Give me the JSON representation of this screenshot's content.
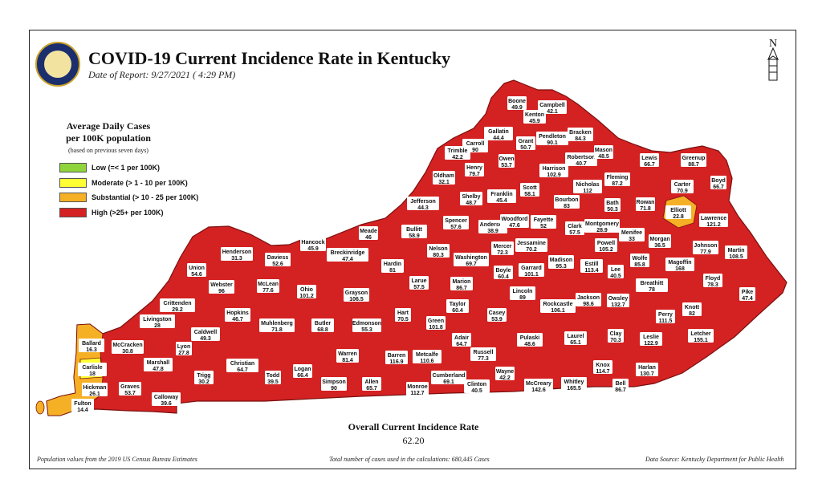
{
  "header": {
    "title": "COVID-19 Current Incidence Rate in Kentucky",
    "date": "Date of Report: 9/27/2021 ( 4:29 PM)",
    "north_label": "N"
  },
  "legend": {
    "title_line1": "Average Daily Cases",
    "title_line2": "per 100K population",
    "subtitle": "(based on previous seven days)",
    "items": [
      {
        "label": "Low (=< 1 per 100K)",
        "color": "#8fd43a"
      },
      {
        "label": "Moderate (> 1 - 10 per 100K)",
        "color": "#ffff33"
      },
      {
        "label": "Substantial (> 10 - 25 per 100K)",
        "color": "#f6b026"
      },
      {
        "label": "High (>25+ per 100K)",
        "color": "#d42121"
      }
    ]
  },
  "colors": {
    "high": "#d42121",
    "substantial": "#f6b026",
    "border": "#7a1010"
  },
  "counties": [
    {
      "name": "Boone",
      "rate": "49.9"
    },
    {
      "name": "Campbell",
      "rate": "42.1"
    },
    {
      "name": "Kenton",
      "rate": "45.9"
    },
    {
      "name": "Gallatin",
      "rate": "44.4"
    },
    {
      "name": "Carroll",
      "rate": "90"
    },
    {
      "name": "Grant",
      "rate": "50.7"
    },
    {
      "name": "Pendleton",
      "rate": "90.1"
    },
    {
      "name": "Bracken",
      "rate": "84.3"
    },
    {
      "name": "Trimble",
      "rate": "42.2"
    },
    {
      "name": "Henry",
      "rate": "79.7"
    },
    {
      "name": "Owen",
      "rate": "53.7"
    },
    {
      "name": "Robertson",
      "rate": "40.7"
    },
    {
      "name": "Mason",
      "rate": "48.5"
    },
    {
      "name": "Lewis",
      "rate": "66.7"
    },
    {
      "name": "Greenup",
      "rate": "88.7"
    },
    {
      "name": "Oldham",
      "rate": "32.1"
    },
    {
      "name": "Harrison",
      "rate": "102.9"
    },
    {
      "name": "Fleming",
      "rate": "87.2"
    },
    {
      "name": "Carter",
      "rate": "70.9"
    },
    {
      "name": "Boyd",
      "rate": "66.7"
    },
    {
      "name": "Shelby",
      "rate": "48.7"
    },
    {
      "name": "Franklin",
      "rate": "45.4"
    },
    {
      "name": "Scott",
      "rate": "58.1"
    },
    {
      "name": "Nicholas",
      "rate": "112"
    },
    {
      "name": "Rowan",
      "rate": "71.8"
    },
    {
      "name": "Jefferson",
      "rate": "44.3"
    },
    {
      "name": "Bourbon",
      "rate": "83"
    },
    {
      "name": "Bath",
      "rate": "50.3"
    },
    {
      "name": "Elliott",
      "rate": "22.8"
    },
    {
      "name": "Lawrence",
      "rate": "121.2"
    },
    {
      "name": "Spencer",
      "rate": "57.6"
    },
    {
      "name": "Anderson",
      "rate": "38.9"
    },
    {
      "name": "Woodford",
      "rate": "47.6"
    },
    {
      "name": "Fayette",
      "rate": "52"
    },
    {
      "name": "Clark",
      "rate": "57.5"
    },
    {
      "name": "Montgomery",
      "rate": "28.9"
    },
    {
      "name": "Menifee",
      "rate": "33"
    },
    {
      "name": "Morgan",
      "rate": "36.5"
    },
    {
      "name": "Johnson",
      "rate": "77.9"
    },
    {
      "name": "Martin",
      "rate": "108.5"
    },
    {
      "name": "Bullitt",
      "rate": "58.9"
    },
    {
      "name": "Meade",
      "rate": "46"
    },
    {
      "name": "Hancock",
      "rate": "45.9"
    },
    {
      "name": "Nelson",
      "rate": "80.3"
    },
    {
      "name": "Mercer",
      "rate": "72.3"
    },
    {
      "name": "Jessamine",
      "rate": "70.2"
    },
    {
      "name": "Powell",
      "rate": "105.2"
    },
    {
      "name": "Wolfe",
      "rate": "85.8"
    },
    {
      "name": "Magoffin",
      "rate": "168"
    },
    {
      "name": "Henderson",
      "rate": "31.3"
    },
    {
      "name": "Daviess",
      "rate": "52.6"
    },
    {
      "name": "Breckinridge",
      "rate": "47.4"
    },
    {
      "name": "Washington",
      "rate": "69.7"
    },
    {
      "name": "Boyle",
      "rate": "60.4"
    },
    {
      "name": "Garrard",
      "rate": "101.1"
    },
    {
      "name": "Madison",
      "rate": "95.3"
    },
    {
      "name": "Estill",
      "rate": "113.4"
    },
    {
      "name": "Lee",
      "rate": "40.5"
    },
    {
      "name": "Union",
      "rate": "54.6"
    },
    {
      "name": "Hardin",
      "rate": "81"
    },
    {
      "name": "Floyd",
      "rate": "78.3"
    },
    {
      "name": "Webster",
      "rate": "96"
    },
    {
      "name": "McLean",
      "rate": "77.6"
    },
    {
      "name": "Ohio",
      "rate": "101.2"
    },
    {
      "name": "Grayson",
      "rate": "106.5"
    },
    {
      "name": "Larue",
      "rate": "57.5"
    },
    {
      "name": "Marion",
      "rate": "86.7"
    },
    {
      "name": "Lincoln",
      "rate": "89"
    },
    {
      "name": "Breathitt",
      "rate": "78"
    },
    {
      "name": "Pike",
      "rate": "47.4"
    },
    {
      "name": "Crittenden",
      "rate": "29.2"
    },
    {
      "name": "Jackson",
      "rate": "98.6"
    },
    {
      "name": "Owsley",
      "rate": "132.7"
    },
    {
      "name": "Taylor",
      "rate": "60.4"
    },
    {
      "name": "Rockcastle",
      "rate": "106.1"
    },
    {
      "name": "Hopkins",
      "rate": "46.7"
    },
    {
      "name": "Hart",
      "rate": "70.5"
    },
    {
      "name": "Casey",
      "rate": "53.9"
    },
    {
      "name": "Perry",
      "rate": "111.5"
    },
    {
      "name": "Knott",
      "rate": "82"
    },
    {
      "name": "Livingston",
      "rate": "28"
    },
    {
      "name": "Muhlenberg",
      "rate": "71.8"
    },
    {
      "name": "Butler",
      "rate": "68.8"
    },
    {
      "name": "Edmonson",
      "rate": "55.3"
    },
    {
      "name": "Green",
      "rate": "101.8"
    },
    {
      "name": "Caldwell",
      "rate": "49.3"
    },
    {
      "name": "Ballard",
      "rate": "16.3"
    },
    {
      "name": "McCracken",
      "rate": "30.8"
    },
    {
      "name": "Lyon",
      "rate": "27.8"
    },
    {
      "name": "Adair",
      "rate": "64.7"
    },
    {
      "name": "Pulaski",
      "rate": "48.6"
    },
    {
      "name": "Laurel",
      "rate": "65.1"
    },
    {
      "name": "Clay",
      "rate": "70.3"
    },
    {
      "name": "Leslie",
      "rate": "122.9"
    },
    {
      "name": "Letcher",
      "rate": "155.1"
    },
    {
      "name": "Christian",
      "rate": "64.7"
    },
    {
      "name": "Warren",
      "rate": "81.4"
    },
    {
      "name": "Barren",
      "rate": "116.9"
    },
    {
      "name": "Metcalfe",
      "rate": "110.6"
    },
    {
      "name": "Russell",
      "rate": "77.3"
    },
    {
      "name": "Carlisle",
      "rate": "18"
    },
    {
      "name": "Marshall",
      "rate": "47.8"
    },
    {
      "name": "Knox",
      "rate": "114.7"
    },
    {
      "name": "Harlan",
      "rate": "130.7"
    },
    {
      "name": "Graves",
      "rate": "53.7"
    },
    {
      "name": "Trigg",
      "rate": "30.2"
    },
    {
      "name": "Todd",
      "rate": "39.5"
    },
    {
      "name": "Logan",
      "rate": "66.4"
    },
    {
      "name": "Cumberland",
      "rate": "69.1"
    },
    {
      "name": "Wayne",
      "rate": "42.2"
    },
    {
      "name": "Bell",
      "rate": "86.7"
    },
    {
      "name": "Hickman",
      "rate": "26.1"
    },
    {
      "name": "Simpson",
      "rate": "90"
    },
    {
      "name": "Allen",
      "rate": "65.7"
    },
    {
      "name": "Monroe",
      "rate": "112.7"
    },
    {
      "name": "Clinton",
      "rate": "40.5"
    },
    {
      "name": "McCreary",
      "rate": "142.6"
    },
    {
      "name": "Whitley",
      "rate": "165.5"
    },
    {
      "name": "Fulton",
      "rate": "14.4"
    },
    {
      "name": "Calloway",
      "rate": "39.6"
    }
  ],
  "overall": {
    "title": "Overall Current Incidence Rate",
    "value": "62.20"
  },
  "footer": {
    "left": "Population values from the 2019 US Census Bureau Estimates",
    "center": "Total number of cases used in the calculations: 680,445 Cases",
    "right": "Data Source: Kentucky Department for Public Health"
  }
}
